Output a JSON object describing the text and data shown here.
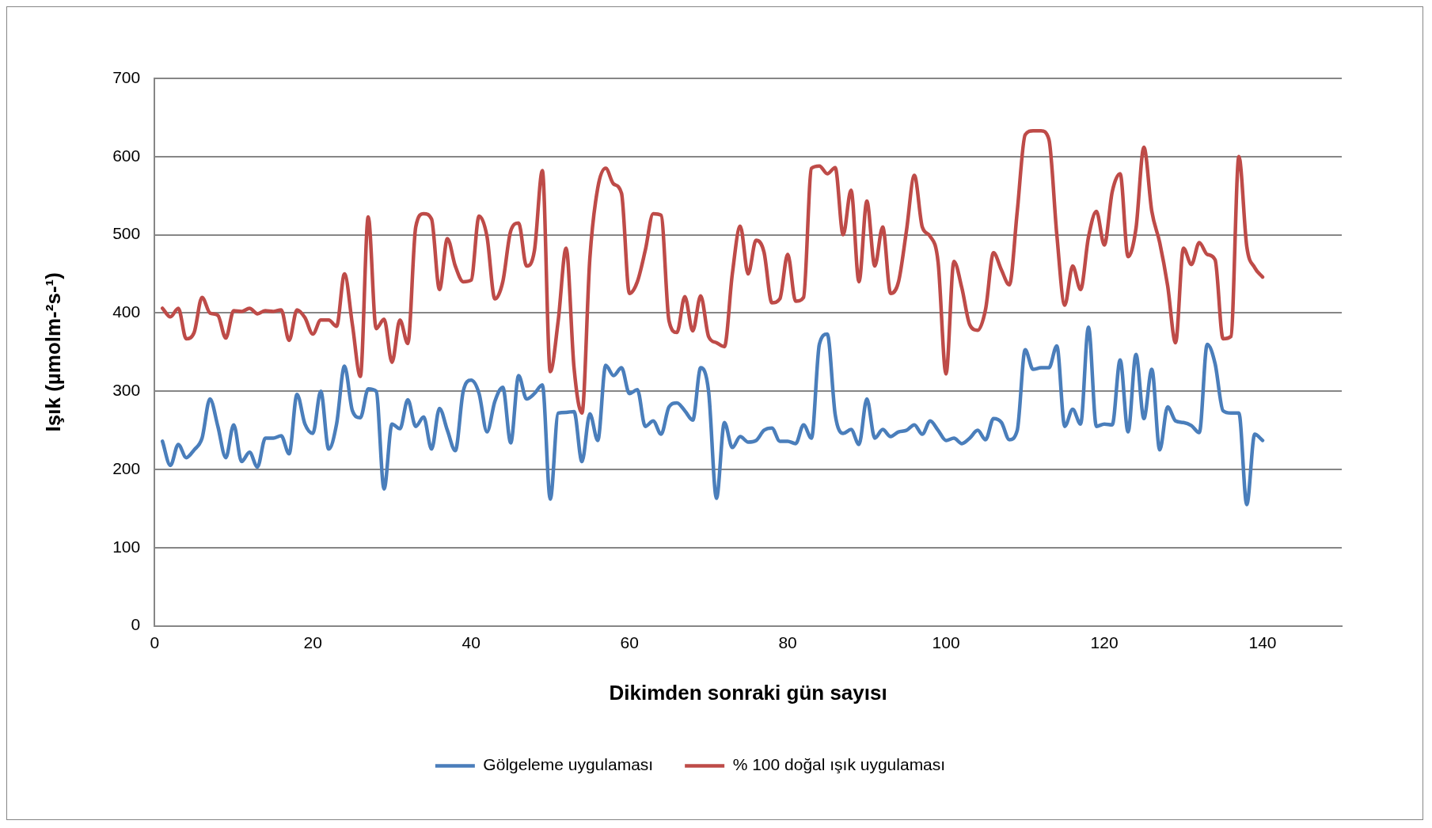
{
  "chart_data": {
    "type": "line",
    "xlabel": "Dikimden sonraki gün sayısı",
    "ylabel": "Işık (µmolm-²s-¹)",
    "x": [
      1,
      2,
      3,
      4,
      5,
      6,
      7,
      8,
      9,
      10,
      11,
      12,
      13,
      14,
      15,
      16,
      17,
      18,
      19,
      20,
      21,
      22,
      23,
      24,
      25,
      26,
      27,
      28,
      29,
      30,
      31,
      32,
      33,
      34,
      35,
      36,
      37,
      38,
      39,
      40,
      41,
      42,
      43,
      44,
      45,
      46,
      47,
      48,
      49,
      50,
      51,
      52,
      53,
      54,
      55,
      56,
      57,
      58,
      59,
      60,
      61,
      62,
      63,
      64,
      65,
      66,
      67,
      68,
      69,
      70,
      71,
      72,
      73,
      74,
      75,
      76,
      77,
      78,
      79,
      80,
      81,
      82,
      83,
      84,
      85,
      86,
      87,
      88,
      89,
      90,
      91,
      92,
      93,
      94,
      95,
      96,
      97,
      98,
      99,
      100,
      101,
      102,
      103,
      104,
      105,
      106,
      107,
      108,
      109,
      110,
      111,
      112,
      113,
      114,
      115,
      116,
      117,
      118,
      119,
      120,
      121,
      122,
      123,
      124,
      125,
      126,
      127,
      128,
      129,
      130,
      131,
      132,
      133,
      134,
      135,
      136,
      137,
      138,
      139,
      140
    ],
    "series": [
      {
        "name": "Gölgeleme uygulaması",
        "color": "#4a7ebb",
        "values": [
          236,
          205,
          232,
          215,
          225,
          240,
          290,
          255,
          215,
          257,
          210,
          222,
          203,
          240,
          240,
          243,
          220,
          296,
          258,
          246,
          300,
          226,
          258,
          332,
          275,
          266,
          303,
          300,
          175,
          258,
          252,
          289,
          255,
          267,
          226,
          278,
          250,
          224,
          300,
          314,
          297,
          248,
          287,
          305,
          234,
          320,
          290,
          297,
          308,
          162,
          272,
          273,
          274,
          210,
          271,
          237,
          333,
          320,
          330,
          297,
          302,
          255,
          262,
          245,
          280,
          285,
          275,
          263,
          330,
          300,
          163,
          260,
          228,
          242,
          235,
          237,
          250,
          253,
          236,
          236,
          233,
          257,
          240,
          360,
          373,
          270,
          246,
          251,
          232,
          290,
          240,
          251,
          242,
          248,
          250,
          257,
          245,
          262,
          250,
          237,
          240,
          233,
          240,
          250,
          238,
          265,
          260,
          238,
          250,
          353,
          328,
          330,
          330,
          358,
          255,
          277,
          258,
          382,
          255,
          258,
          257,
          340,
          248,
          347,
          265,
          328,
          225,
          280,
          262,
          260,
          256,
          247,
          360,
          335,
          275,
          272,
          272,
          155,
          245,
          237
        ]
      },
      {
        "name": "% 100 doğal ışık uygulaması",
        "color": "#be4b48",
        "values": [
          406,
          395,
          406,
          367,
          375,
          420,
          400,
          397,
          368,
          403,
          402,
          406,
          399,
          403,
          402,
          404,
          365,
          404,
          394,
          373,
          391,
          391,
          383,
          450,
          385,
          319,
          523,
          380,
          392,
          337,
          391,
          361,
          510,
          527,
          520,
          430,
          495,
          460,
          440,
          442,
          524,
          498,
          418,
          440,
          505,
          515,
          460,
          480,
          582,
          325,
          390,
          483,
          330,
          272,
          470,
          560,
          585,
          565,
          553,
          425,
          440,
          480,
          527,
          525,
          390,
          375,
          421,
          377,
          422,
          370,
          362,
          357,
          450,
          511,
          450,
          493,
          478,
          413,
          418,
          475,
          415,
          420,
          585,
          588,
          578,
          586,
          500,
          557,
          440,
          543,
          460,
          510,
          425,
          440,
          505,
          576,
          510,
          498,
          465,
          322,
          466,
          432,
          385,
          378,
          405,
          477,
          455,
          436,
          530,
          628,
          633,
          633,
          622,
          500,
          410,
          460,
          430,
          497,
          530,
          487,
          555,
          578,
          472,
          508,
          612,
          530,
          490,
          435,
          362,
          483,
          462,
          490,
          475,
          468,
          367,
          370,
          600,
          485,
          458,
          446
        ]
      }
    ],
    "xlim": [
      0,
      150
    ],
    "xticks": [
      0,
      20,
      40,
      60,
      80,
      100,
      120,
      140
    ],
    "ylim": [
      0,
      700
    ],
    "yticks": [
      0,
      100,
      200,
      300,
      400,
      500,
      600,
      700
    ],
    "grid": "y",
    "legend": "bottom",
    "marker": "none",
    "line_style": "solid"
  }
}
